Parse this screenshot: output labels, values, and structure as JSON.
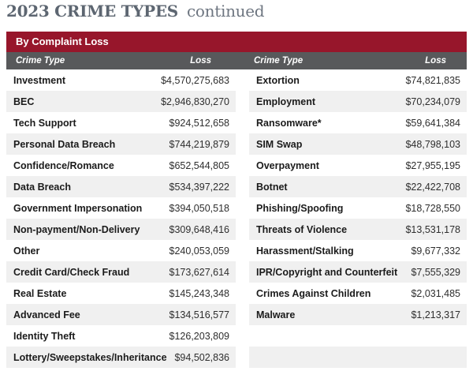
{
  "title": {
    "main": "2023 CRIME TYPES",
    "continued": "continued"
  },
  "banner": {
    "label": "By Complaint Loss"
  },
  "table": {
    "headers": {
      "crime_type": "Crime Type",
      "loss": "Loss"
    },
    "left_rows": [
      {
        "type": "Investment",
        "loss": "$4,570,275,683"
      },
      {
        "type": "BEC",
        "loss": "$2,946,830,270"
      },
      {
        "type": "Tech Support",
        "loss": "$924,512,658"
      },
      {
        "type": "Personal Data Breach",
        "loss": "$744,219,879"
      },
      {
        "type": "Confidence/Romance",
        "loss": "$652,544,805"
      },
      {
        "type": "Data Breach",
        "loss": "$534,397,222"
      },
      {
        "type": "Government Impersonation",
        "loss": "$394,050,518"
      },
      {
        "type": "Non-payment/Non-Delivery",
        "loss": "$309,648,416"
      },
      {
        "type": "Other",
        "loss": "$240,053,059"
      },
      {
        "type": "Credit Card/Check Fraud",
        "loss": "$173,627,614"
      },
      {
        "type": "Real Estate",
        "loss": "$145,243,348"
      },
      {
        "type": "Advanced Fee",
        "loss": "$134,516,577"
      },
      {
        "type": "Identity Theft",
        "loss": "$126,203,809"
      },
      {
        "type": "Lottery/Sweepstakes/Inheritance",
        "loss": "$94,502,836"
      }
    ],
    "right_rows": [
      {
        "type": "Extortion",
        "loss": "$74,821,835"
      },
      {
        "type": "Employment",
        "loss": "$70,234,079"
      },
      {
        "type": "Ransomware*",
        "loss": "$59,641,384"
      },
      {
        "type": "SIM Swap",
        "loss": "$48,798,103"
      },
      {
        "type": "Overpayment",
        "loss": "$27,955,195"
      },
      {
        "type": "Botnet",
        "loss": "$22,422,708"
      },
      {
        "type": "Phishing/Spoofing",
        "loss": "$18,728,550"
      },
      {
        "type": "Threats of Violence",
        "loss": "$13,531,178"
      },
      {
        "type": "Harassment/Stalking",
        "loss": "$9,677,332"
      },
      {
        "type": "IPR/Copyright and Counterfeit",
        "loss": "$7,555,329"
      },
      {
        "type": "Crimes Against Children",
        "loss": "$2,031,485"
      },
      {
        "type": "Malware",
        "loss": "$1,213,317"
      },
      {
        "type": "",
        "loss": ""
      },
      {
        "type": "",
        "loss": ""
      }
    ]
  },
  "colors": {
    "banner_red": "#97162b",
    "header_gray": "#58595b",
    "stripe_gray": "#f0f0f0",
    "title_slate": "#5d6671"
  }
}
